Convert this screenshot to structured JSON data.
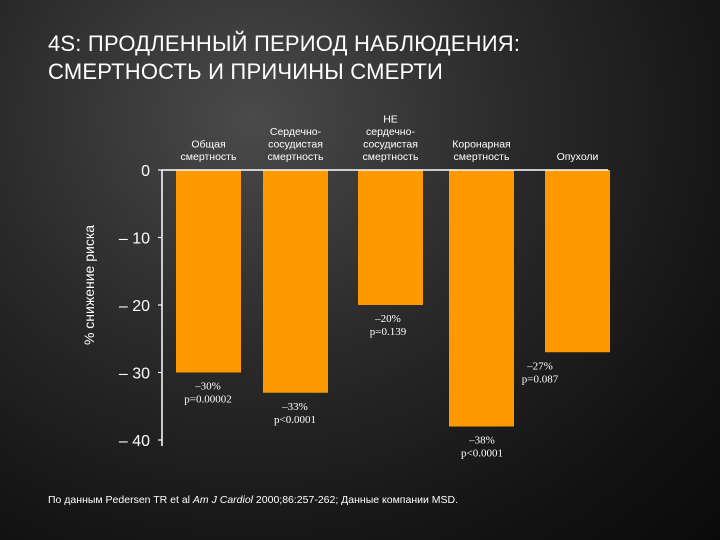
{
  "slide": {
    "title_line1": "4S: ПРОДЛЕННЫЙ ПЕРИОД НАБЛЮДЕНИЯ:",
    "title_line2": "СМЕРТНОСТЬ И ПРИЧИНЫ СМЕРТИ",
    "source_prefix": "По данным Pedersen TR et al ",
    "source_journal": "Am J Cardiol",
    "source_citation": " 2000;86:257-262; Данные компании MSD."
  },
  "colors": {
    "bar": "#ff9900",
    "text": "#ffffff",
    "axis": "#ffffff"
  },
  "chart_data": {
    "type": "bar",
    "ylabel": "% снижение риска",
    "ylim": [
      -40,
      0
    ],
    "yticks": [
      0,
      -10,
      -20,
      -30,
      -40
    ],
    "ytick_labels": [
      "0",
      "– 10",
      "– 20",
      "– 30",
      "– 40"
    ],
    "categories": [
      [
        "Общая",
        "смертность"
      ],
      [
        "Сердечно-",
        "сосудистая",
        "смертность"
      ],
      [
        "НЕ",
        "сердечно-",
        "сосудистая",
        "смертность"
      ],
      [
        "Коронарная",
        "смертность"
      ],
      [
        "Опухоли"
      ]
    ],
    "values": [
      -30,
      -33,
      -20,
      -38,
      -27
    ],
    "value_labels": [
      [
        "–30%",
        "p=0.00002"
      ],
      [
        "–33%",
        "p<0.0001"
      ],
      [
        "–20%",
        "p=0.139"
      ],
      [
        "–38%",
        "p<0.0001"
      ],
      [
        "–27%",
        "p=0.087"
      ]
    ]
  }
}
